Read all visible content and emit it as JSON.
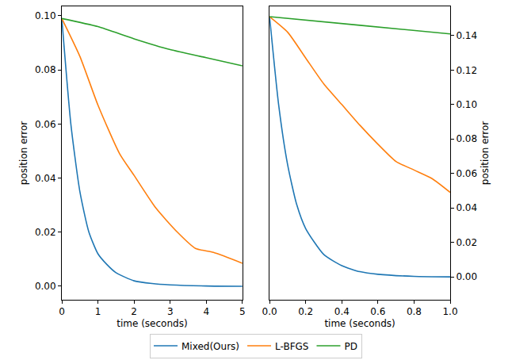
{
  "chart_data": [
    {
      "type": "line",
      "x_label": "time (seconds)",
      "y_label": "position error",
      "xlim": [
        0,
        5
      ],
      "xticks": [
        0,
        1,
        2,
        3,
        4,
        5
      ],
      "ylim": [
        -0.005,
        0.1035
      ],
      "yticks": [
        {
          "value": 0,
          "label": "0.00"
        },
        {
          "value": 0.02,
          "label": "0.02"
        },
        {
          "value": 0.04,
          "label": "0.04"
        },
        {
          "value": 0.06,
          "label": "0.06"
        },
        {
          "value": 0.08,
          "label": "0.08"
        },
        {
          "value": 0.1,
          "label": "0.10"
        }
      ],
      "legend": "bottom",
      "series": [
        {
          "name": "Mixed(Ours)",
          "color": "#1f77b4",
          "x": [
            0,
            0.25,
            0.5,
            0.75,
            1,
            1.25,
            1.5,
            2,
            2.5,
            3,
            4,
            5
          ],
          "values": [
            0.099,
            0.06,
            0.035,
            0.02,
            0.012,
            0.008,
            0.005,
            0.002,
            0.001,
            0.0005,
            0.0001,
            0
          ]
        },
        {
          "name": "L-BFGS",
          "color": "#ff7f0e",
          "x": [
            0,
            0.5,
            1,
            1.6,
            2,
            2.6,
            3.2,
            3.7,
            4.2,
            5
          ],
          "values": [
            0.099,
            0.085,
            0.067,
            0.049,
            0.041,
            0.029,
            0.02,
            0.014,
            0.0125,
            0.0085
          ]
        },
        {
          "name": "PD",
          "color": "#2ca02c",
          "x": [
            0,
            1,
            2,
            3,
            4,
            5
          ],
          "values": [
            0.099,
            0.096,
            0.0915,
            0.0875,
            0.0845,
            0.0815
          ]
        }
      ]
    },
    {
      "type": "line",
      "x_label": "time (seconds)",
      "y_label": "position error",
      "xlim": [
        0,
        1
      ],
      "xticks": [
        {
          "value": 0,
          "label": "0.0"
        },
        {
          "value": 0.2,
          "label": "0.2"
        },
        {
          "value": 0.4,
          "label": "0.4"
        },
        {
          "value": 0.6,
          "label": "0.6"
        },
        {
          "value": 0.8,
          "label": "0.8"
        },
        {
          "value": 1,
          "label": "1.0"
        }
      ],
      "ylim": [
        -0.0133,
        0.157
      ],
      "yticks": [
        {
          "value": 0,
          "label": "0.00"
        },
        {
          "value": 0.02,
          "label": "0.02"
        },
        {
          "value": 0.04,
          "label": "0.04"
        },
        {
          "value": 0.06,
          "label": "0.06"
        },
        {
          "value": 0.08,
          "label": "0.08"
        },
        {
          "value": 0.1,
          "label": "0.10"
        },
        {
          "value": 0.12,
          "label": "0.12"
        },
        {
          "value": 0.14,
          "label": "0.14"
        }
      ],
      "series": [
        {
          "name": "Mixed(Ours)",
          "color": "#1f77b4",
          "x": [
            0,
            0.05,
            0.1,
            0.15,
            0.2,
            0.3,
            0.4,
            0.5,
            0.6,
            0.8,
            1
          ],
          "values": [
            0.151,
            0.1,
            0.065,
            0.042,
            0.028,
            0.013,
            0.0065,
            0.003,
            0.0015,
            0.0003,
            0
          ]
        },
        {
          "name": "L-BFGS",
          "color": "#ff7f0e",
          "x": [
            0,
            0.1,
            0.2,
            0.3,
            0.4,
            0.5,
            0.6,
            0.7,
            0.8,
            0.9,
            1
          ],
          "values": [
            0.151,
            0.142,
            0.127,
            0.112,
            0.1,
            0.088,
            0.077,
            0.067,
            0.062,
            0.057,
            0.049
          ]
        },
        {
          "name": "PD",
          "color": "#2ca02c",
          "x": [
            0,
            0.5,
            1
          ],
          "values": [
            0.151,
            0.146,
            0.141
          ]
        }
      ]
    }
  ]
}
